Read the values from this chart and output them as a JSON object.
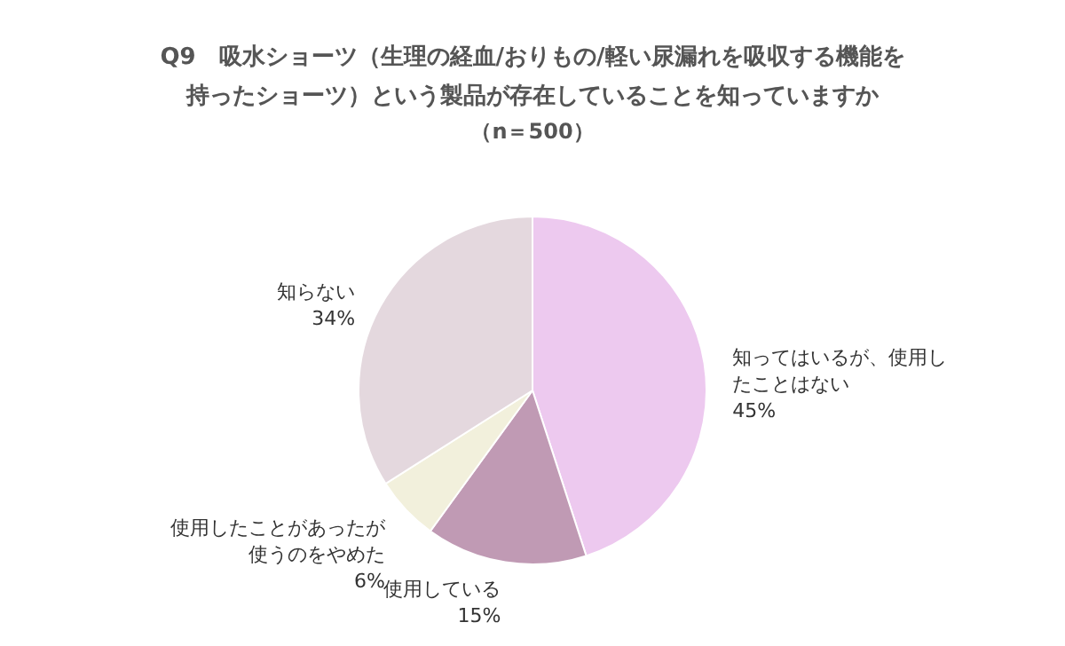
{
  "chart_data": {
    "type": "pie",
    "title": "Q9　吸水ショーツ（生理の経血/おりもの/軽い尿漏れを吸収する機能を持ったショーツ）という製品が存在していることを知っていますか",
    "subtitle": "（n＝500）",
    "categories": [
      "知ってはいるが、使用したことはない",
      "使用している",
      "使用したことがあったが使うのをやめた",
      "知らない"
    ],
    "values": [
      45,
      15,
      6,
      34
    ],
    "colors": [
      "#edc9ef",
      "#c09ab4",
      "#f2f0dc",
      "#e4d8de"
    ],
    "value_labels": [
      "45%",
      "15%",
      "6%",
      "34%"
    ],
    "legend": false
  }
}
